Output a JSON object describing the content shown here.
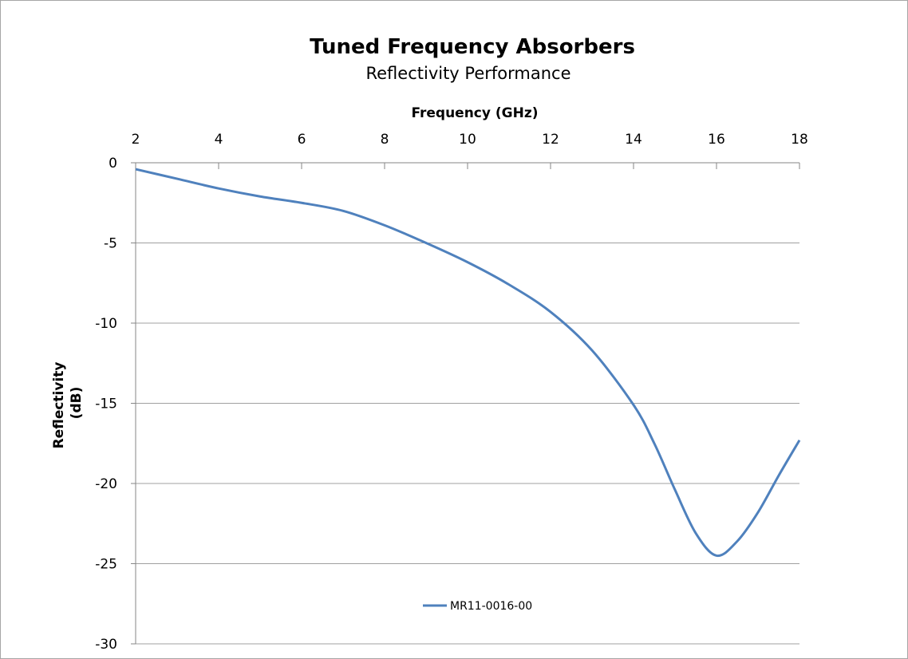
{
  "chart_data": {
    "type": "line",
    "title": "Tuned Frequency Absorbers",
    "subtitle": "Reflectivity Performance",
    "xlabel": "Frequency (GHz)",
    "ylabel": "Reflectivity (dB)",
    "ylabel_lines": [
      "Reflectivity",
      "(dB)"
    ],
    "x_axis_position": "top",
    "xlim": [
      2,
      18
    ],
    "ylim": [
      -30,
      0
    ],
    "x_ticks": [
      2,
      4,
      6,
      8,
      10,
      12,
      14,
      16,
      18
    ],
    "y_ticks": [
      0,
      -5,
      -10,
      -15,
      -20,
      -25,
      -30
    ],
    "grid": "horizontal",
    "legend_position": "bottom",
    "series": [
      {
        "name": "MR11-0016-00",
        "color": "#4f81bd",
        "x": [
          2,
          3,
          4,
          5,
          6,
          7,
          8,
          9,
          10,
          11,
          12,
          13,
          14,
          14.5,
          15,
          15.5,
          16,
          16.5,
          17,
          17.5,
          18
        ],
        "y": [
          -0.4,
          -1.0,
          -1.6,
          -2.1,
          -2.5,
          -3.0,
          -3.9,
          -5.0,
          -6.2,
          -7.6,
          -9.3,
          -11.7,
          -15.1,
          -17.5,
          -20.4,
          -23.1,
          -24.5,
          -23.6,
          -21.8,
          -19.5,
          -17.3
        ]
      }
    ]
  }
}
